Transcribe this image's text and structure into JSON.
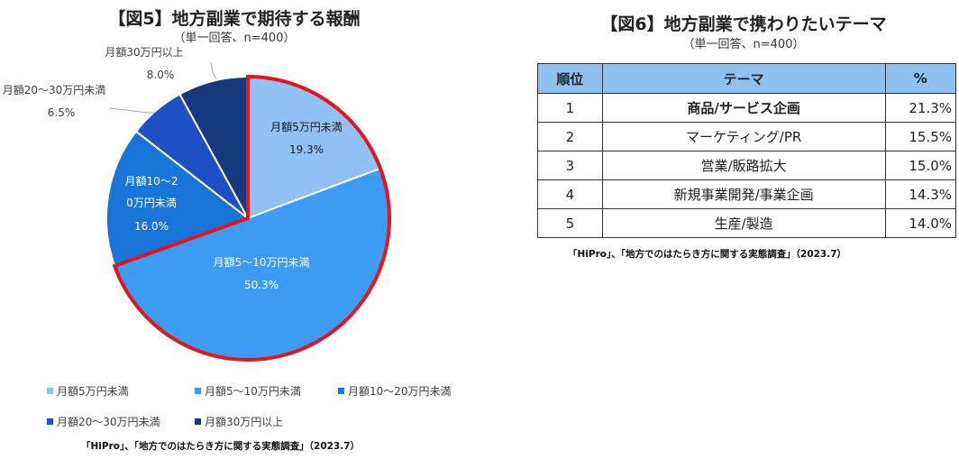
{
  "fig5": {
    "title": "【図5】地方副業で期待する報酬",
    "subtitle": "（単一回答、n=400）",
    "source": "「HiPro」、「地方でのはたらき方に関する実態調査」（2023.7）"
  },
  "fig6": {
    "title": "【図6】地方副業で携わりたいテーマ",
    "subtitle": "（単一回答、n=400）",
    "source": "「HiPro」、「地方でのはたらき方に関する実態調査」（2023.7）",
    "headers": [
      "順位",
      "テーマ",
      "%"
    ],
    "rows": [
      {
        "rank": "1",
        "theme": "商品/サービス企画",
        "pct": "21.3%"
      },
      {
        "rank": "2",
        "theme": "マーケティング/PR",
        "pct": "15.5%"
      },
      {
        "rank": "3",
        "theme": "営業/販路拡大",
        "pct": "15.0%"
      },
      {
        "rank": "4",
        "theme": "新規事業開発/事業企画",
        "pct": "14.3%"
      },
      {
        "rank": "5",
        "theme": "生産/製造",
        "pct": "14.0%"
      }
    ]
  },
  "chart_data": [
    {
      "type": "pie",
      "title": "【図5】地方副業で期待する報酬",
      "legend_position": "bottom",
      "categories": [
        "月額5万円未満",
        "月額5〜10万円未満",
        "月額10〜20万円未満",
        "月額20〜30万円未満",
        "月額30万円以上"
      ],
      "values": [
        19.3,
        50.3,
        16.0,
        6.5,
        8.0
      ],
      "labels": [
        "19.3%",
        "50.3%",
        "16.0%",
        "6.5%",
        "8.0%"
      ],
      "slice_labels": [
        "月額5万円未満",
        "月額5〜10万円未満",
        "月額10〜20万円未満",
        "月額20〜30万円未満",
        "月額30万円以上"
      ],
      "colors": [
        "#90c2f5",
        "#3d9bf2",
        "#1874d6",
        "#1d50c4",
        "#143a7c"
      ],
      "highlight_color": "#e8141c",
      "highlighted": [
        0,
        1
      ]
    },
    {
      "type": "table",
      "title": "【図6】地方副業で携わりたいテーマ",
      "columns": [
        "順位",
        "テーマ",
        "%"
      ],
      "rows": [
        [
          "1",
          "商品/サービス企画",
          21.3
        ],
        [
          "2",
          "マーケティング/PR",
          15.5
        ],
        [
          "3",
          "営業/販路拡大",
          15.0
        ],
        [
          "4",
          "新規事業開発/事業企画",
          14.3
        ],
        [
          "5",
          "生産/製造",
          14.0
        ]
      ]
    }
  ]
}
